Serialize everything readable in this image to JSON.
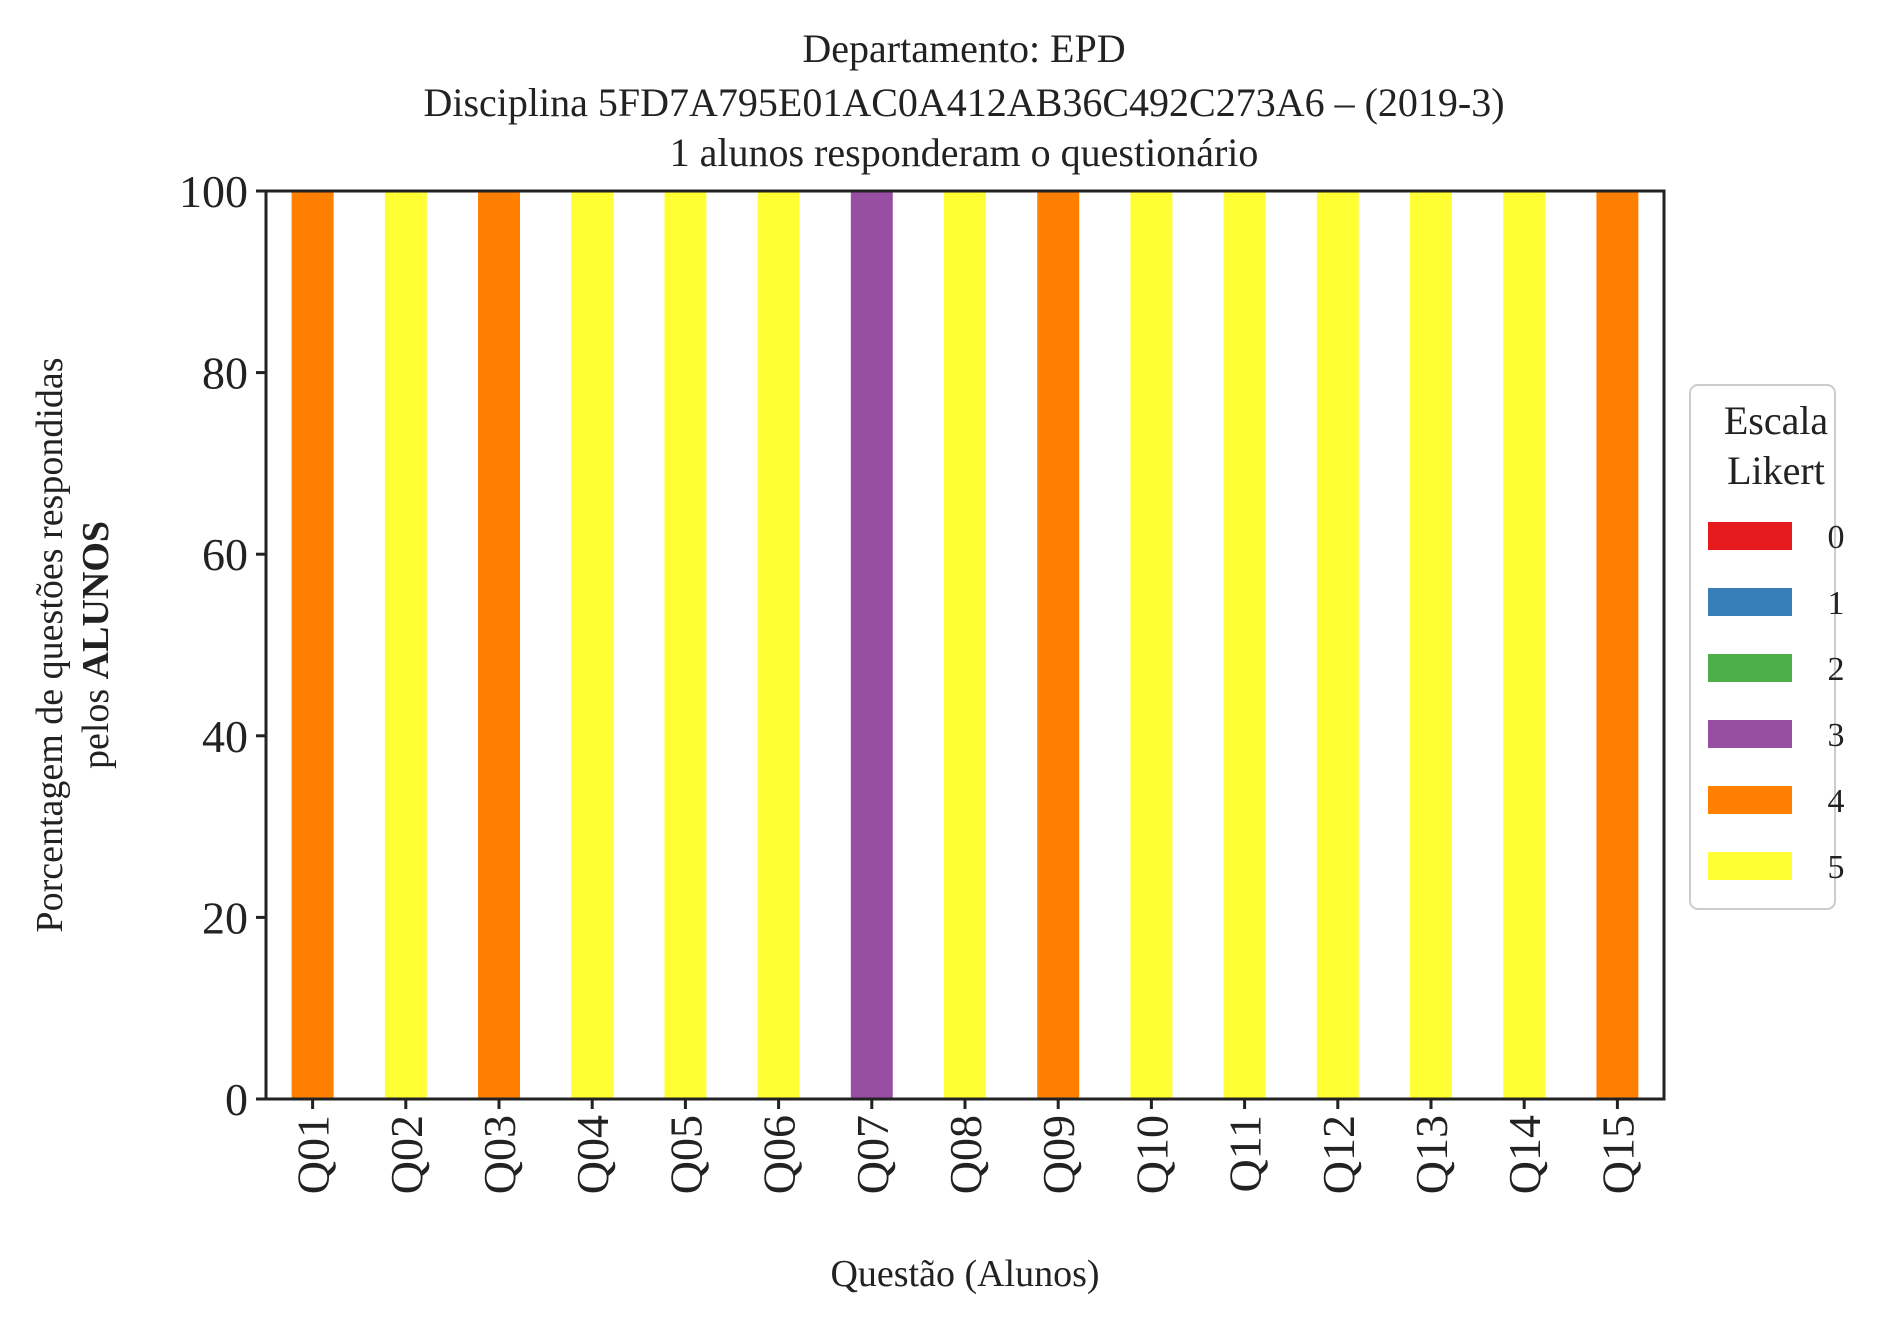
{
  "chart_data": {
    "type": "bar",
    "stacked": true,
    "title_lines": [
      "Departamento: EPD",
      "Disciplina 5FD7A795E01AC0A412AB36C492C273A6 – (2019-3)",
      "1 alunos responderam o questionário"
    ],
    "xlabel": "Questão (Alunos)",
    "ylabel_line1": "Porcentagem de questões respondidas",
    "ylabel_line2_prefix": "pelos ",
    "ylabel_line2_bold": "ALUNOS",
    "ylim": [
      0,
      100
    ],
    "yticks": [
      0,
      20,
      40,
      60,
      80,
      100
    ],
    "categories": [
      "Q01",
      "Q02",
      "Q03",
      "Q04",
      "Q05",
      "Q06",
      "Q07",
      "Q08",
      "Q09",
      "Q10",
      "Q11",
      "Q12",
      "Q13",
      "Q14",
      "Q15"
    ],
    "legend": {
      "title_lines": [
        "Escala",
        "Likert"
      ],
      "placement": "right"
    },
    "series": [
      {
        "name": "0",
        "color": "#e41a1c",
        "values": [
          0,
          0,
          0,
          0,
          0,
          0,
          0,
          0,
          0,
          0,
          0,
          0,
          0,
          0,
          0
        ]
      },
      {
        "name": "1",
        "color": "#377eb8",
        "values": [
          0,
          0,
          0,
          0,
          0,
          0,
          0,
          0,
          0,
          0,
          0,
          0,
          0,
          0,
          0
        ]
      },
      {
        "name": "2",
        "color": "#4daf4a",
        "values": [
          0,
          0,
          0,
          0,
          0,
          0,
          0,
          0,
          0,
          0,
          0,
          0,
          0,
          0,
          0
        ]
      },
      {
        "name": "3",
        "color": "#984ea3",
        "values": [
          0,
          0,
          0,
          0,
          0,
          0,
          100,
          0,
          0,
          0,
          0,
          0,
          0,
          0,
          0
        ]
      },
      {
        "name": "4",
        "color": "#ff7f00",
        "values": [
          100,
          0,
          100,
          0,
          0,
          0,
          0,
          0,
          100,
          0,
          0,
          0,
          0,
          0,
          100
        ]
      },
      {
        "name": "5",
        "color": "#ffff33",
        "values": [
          0,
          100,
          0,
          100,
          100,
          100,
          0,
          100,
          0,
          100,
          100,
          100,
          100,
          100,
          0
        ]
      }
    ],
    "grid": false
  }
}
